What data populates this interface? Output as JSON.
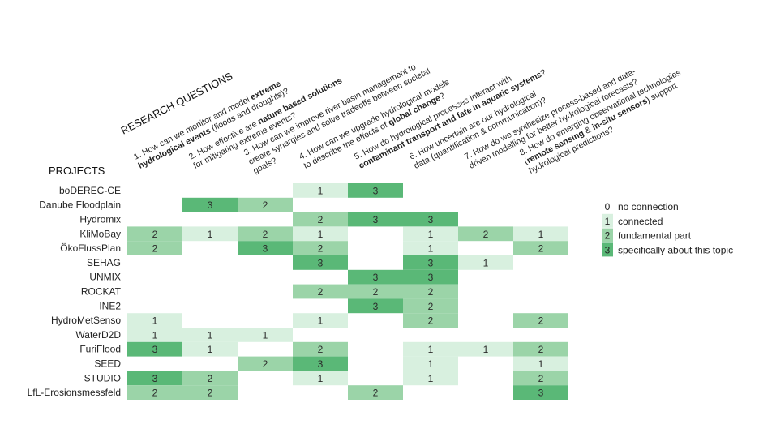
{
  "chart_data": {
    "type": "heatmap",
    "rq_title": "RESEARCH QUESTIONS",
    "projects_title": "PROJECTS",
    "questions": [
      {
        "lines": [
          [
            {
              "t": "1. How can we monitor and model ",
              "b": false
            },
            {
              "t": "extreme",
              "b": true
            }
          ],
          [
            {
              "t": "hydrological events",
              "b": true
            },
            {
              "t": " (floods and droughts)?",
              "b": false
            }
          ]
        ]
      },
      {
        "lines": [
          [
            {
              "t": "2. How effective are ",
              "b": false
            },
            {
              "t": "nature based solutions",
              "b": true
            }
          ],
          [
            {
              "t": "for mitigating extreme events?",
              "b": false
            }
          ]
        ]
      },
      {
        "lines": [
          [
            {
              "t": "3. How can we improve river basin management to",
              "b": false
            }
          ],
          [
            {
              "t": "create synergies and solve tradeoffs between societal",
              "b": false
            }
          ],
          [
            {
              "t": "goals?",
              "b": false
            }
          ]
        ]
      },
      {
        "lines": [
          [
            {
              "t": "4. How can we upgrade hydrological models",
              "b": false
            }
          ],
          [
            {
              "t": "to describe the effects of ",
              "b": false
            },
            {
              "t": "global change",
              "b": true
            },
            {
              "t": "?",
              "b": false
            }
          ]
        ]
      },
      {
        "lines": [
          [
            {
              "t": "5. How do hydrological processes interact with",
              "b": false
            }
          ],
          [
            {
              "t": "contaminant transport and fate in aquatic systems",
              "b": true
            },
            {
              "t": "?",
              "b": false
            }
          ]
        ]
      },
      {
        "lines": [
          [
            {
              "t": "6. How uncertain are our hydrological",
              "b": false
            }
          ],
          [
            {
              "t": "data (quantification & communication)?",
              "b": false
            }
          ]
        ]
      },
      {
        "lines": [
          [
            {
              "t": "7. How do we synthesize process-based and data-",
              "b": false
            }
          ],
          [
            {
              "t": "driven modelling for better hydrological forecasts?",
              "b": false
            }
          ]
        ]
      },
      {
        "lines": [
          [
            {
              "t": "8. How do emerging observational technologies",
              "b": false
            }
          ],
          [
            {
              "t": "(",
              "b": false
            },
            {
              "t": "remote sensing",
              "b": true
            },
            {
              "t": " & ",
              "b": false
            },
            {
              "t": "in-situ sensors",
              "b": true
            },
            {
              "t": ") support",
              "b": false
            }
          ],
          [
            {
              "t": "hydrological predictions?",
              "b": false
            }
          ]
        ]
      }
    ],
    "projects": [
      "boDEREC-CE",
      "Danube Floodplain",
      "Hydromix",
      "KliMoBay",
      "ÖkoFlussPlan",
      "SEHAG",
      "UNMIX",
      "ROCKAT",
      "INE2",
      "HydroMetSenso",
      "WaterD2D",
      "FuriFlood",
      "SEED",
      "STUDIO",
      "LfL-Erosionsmessfeld"
    ],
    "values": [
      [
        0,
        0,
        0,
        1,
        3,
        0,
        0,
        0
      ],
      [
        0,
        3,
        2,
        0,
        0,
        0,
        0,
        0
      ],
      [
        0,
        0,
        0,
        2,
        3,
        3,
        0,
        0
      ],
      [
        2,
        1,
        2,
        1,
        0,
        1,
        2,
        1
      ],
      [
        2,
        0,
        3,
        2,
        0,
        1,
        0,
        2
      ],
      [
        0,
        0,
        0,
        3,
        0,
        3,
        1,
        0
      ],
      [
        0,
        0,
        0,
        0,
        3,
        3,
        0,
        0
      ],
      [
        0,
        0,
        0,
        2,
        2,
        2,
        0,
        0
      ],
      [
        0,
        0,
        0,
        0,
        3,
        2,
        0,
        0
      ],
      [
        1,
        0,
        0,
        1,
        0,
        2,
        0,
        2
      ],
      [
        1,
        1,
        1,
        0,
        0,
        0,
        0,
        0
      ],
      [
        3,
        1,
        0,
        2,
        0,
        1,
        1,
        2
      ],
      [
        0,
        0,
        2,
        3,
        0,
        1,
        0,
        1
      ],
      [
        3,
        2,
        0,
        1,
        0,
        1,
        0,
        2
      ],
      [
        2,
        2,
        0,
        0,
        2,
        0,
        0,
        3
      ]
    ],
    "colors": {
      "1": "#d8f0df",
      "2": "#9bd4a8",
      "3": "#5ab877"
    },
    "legend": [
      {
        "value": "0",
        "label": "no connection"
      },
      {
        "value": "1",
        "label": "connected"
      },
      {
        "value": "2",
        "label": "fundamental part"
      },
      {
        "value": "3",
        "label": "specifically about this topic"
      }
    ]
  }
}
